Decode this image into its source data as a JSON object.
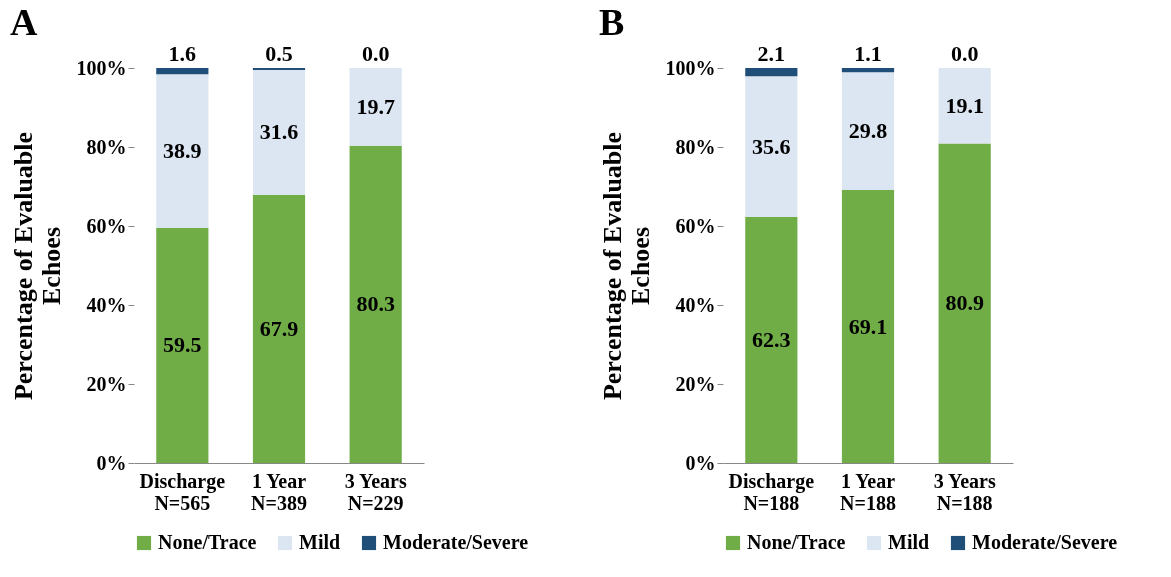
{
  "chart_data": [
    {
      "type": "bar",
      "title": "A",
      "stacked": true,
      "categories": [
        "Discharge\nN=565",
        "1 Year\nN=389",
        "3 Years\nN=229"
      ],
      "ylabel": "Percentage of Evaluable Echoes",
      "ylim": [
        0,
        100
      ],
      "yticks": [
        {
          "value": 0,
          "label": "0%"
        },
        {
          "value": 20,
          "label": "20%"
        },
        {
          "value": 40,
          "label": "40%"
        },
        {
          "value": 60,
          "label": "60%"
        },
        {
          "value": 80,
          "label": "80%"
        },
        {
          "value": 100,
          "label": "100%"
        }
      ],
      "data_labels": true,
      "legend": "bottom",
      "grid": false,
      "series": [
        {
          "name": "None/Trace",
          "color": "#70ad47",
          "values": [
            59.5,
            67.9,
            80.3
          ]
        },
        {
          "name": "Mild",
          "color": "#dce6f2",
          "values": [
            38.9,
            31.6,
            19.7
          ]
        },
        {
          "name": "Moderate/Severe",
          "color": "#1f4e79",
          "values": [
            1.6,
            0.5,
            0.0
          ],
          "value_labels": [
            "1.6",
            "0.5",
            "0.0"
          ]
        }
      ]
    },
    {
      "type": "bar",
      "title": "B",
      "stacked": true,
      "categories": [
        "Discharge\nN=188",
        "1 Year\nN=188",
        "3 Years\nN=188"
      ],
      "ylabel": "Percentage of Evaluable Echoes",
      "ylim": [
        0,
        100
      ],
      "yticks": [
        {
          "value": 0,
          "label": "0%"
        },
        {
          "value": 20,
          "label": "20%"
        },
        {
          "value": 40,
          "label": "40%"
        },
        {
          "value": 60,
          "label": "60%"
        },
        {
          "value": 80,
          "label": "80%"
        },
        {
          "value": 100,
          "label": "100%"
        }
      ],
      "data_labels": true,
      "legend": "bottom",
      "grid": false,
      "series": [
        {
          "name": "None/Trace",
          "color": "#70ad47",
          "values": [
            62.3,
            69.1,
            80.9
          ]
        },
        {
          "name": "Mild",
          "color": "#dce6f2",
          "values": [
            35.6,
            29.8,
            19.1
          ]
        },
        {
          "name": "Moderate/Severe",
          "color": "#1f4e79",
          "values": [
            2.1,
            1.1,
            0.0
          ],
          "value_labels": [
            "2.1",
            "1.1",
            "0.0"
          ]
        }
      ]
    }
  ]
}
